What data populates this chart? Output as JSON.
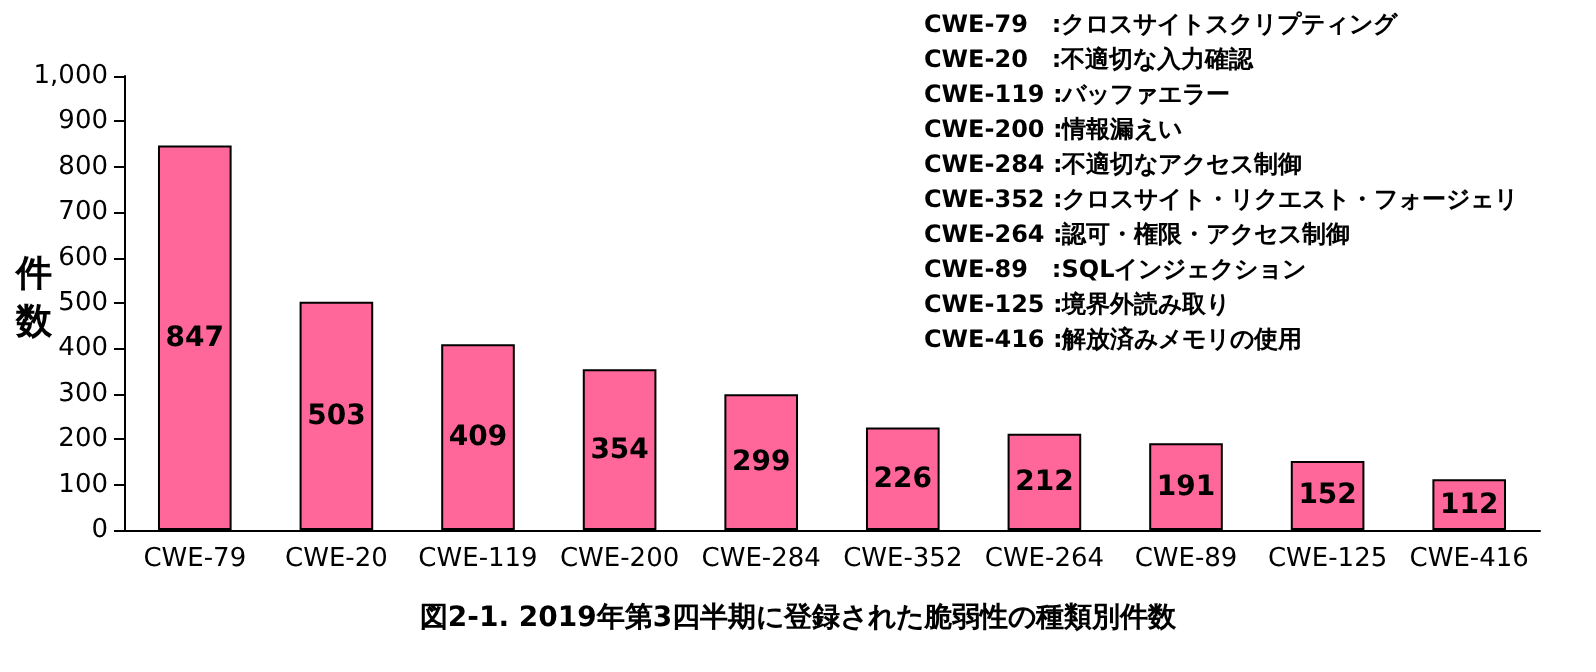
{
  "chart_data": {
    "type": "bar",
    "title": "図2-1. 2019年第3四半期に登録された脆弱性の種類別件数",
    "ylabel": "件数",
    "categories": [
      "CWE-79",
      "CWE-20",
      "CWE-119",
      "CWE-200",
      "CWE-284",
      "CWE-352",
      "CWE-264",
      "CWE-89",
      "CWE-125",
      "CWE-416"
    ],
    "values": [
      847,
      503,
      409,
      354,
      299,
      226,
      212,
      191,
      152,
      112
    ],
    "color": "#ff6699",
    "data_labels": true,
    "grid": false,
    "ylim": [
      0,
      1000
    ],
    "yticks": [
      0,
      100,
      200,
      300,
      400,
      500,
      600,
      700,
      800,
      900,
      {
        "value": 1000,
        "label": "1,000"
      }
    ],
    "annotations": [
      "CWE-79　:クロスサイトスクリプティング",
      "CWE-20　:不適切な入力確認",
      "CWE-119 :バッファエラー",
      "CWE-200 :情報漏えい",
      "CWE-284 :不適切なアクセス制御",
      "CWE-352 :クロスサイト・リクエスト・フォージェリ",
      "CWE-264 :認可・権限・アクセス制御",
      "CWE-89　:SQLインジェクション",
      "CWE-125 :境界外読み取り",
      "CWE-416 :解放済みメモリの使用"
    ]
  }
}
